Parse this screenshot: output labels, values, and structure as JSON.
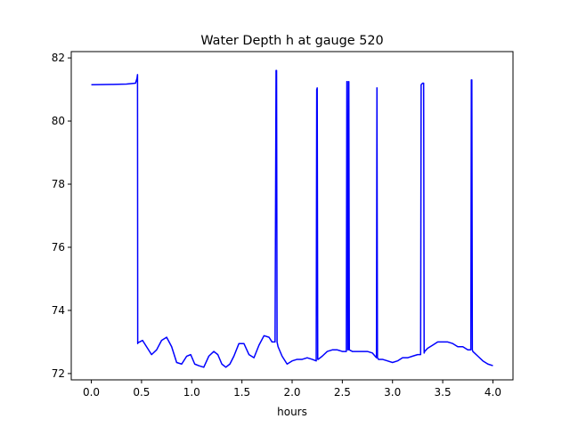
{
  "chart_data": {
    "type": "line",
    "title": "Water Depth h at gauge 520",
    "xlabel": "hours",
    "ylabel": "",
    "xlim": [
      -0.2,
      4.2
    ],
    "ylim": [
      71.8,
      82.2
    ],
    "x_ticks": [
      0.0,
      0.5,
      1.0,
      1.5,
      2.0,
      2.5,
      3.0,
      3.5,
      4.0
    ],
    "x_tick_labels": [
      "0.0",
      "0.5",
      "1.0",
      "1.5",
      "2.0",
      "2.5",
      "3.0",
      "3.5",
      "4.0"
    ],
    "y_ticks": [
      72,
      74,
      76,
      78,
      80,
      82
    ],
    "y_tick_labels": [
      "72",
      "74",
      "76",
      "78",
      "80",
      "82"
    ],
    "grid": false,
    "legend": "none",
    "series": [
      {
        "color": "#0000ff",
        "x": [
          0.0,
          0.2,
          0.35,
          0.44,
          0.455,
          0.46,
          0.462,
          0.465,
          0.48,
          0.51,
          0.55,
          0.6,
          0.65,
          0.7,
          0.75,
          0.8,
          0.85,
          0.9,
          0.95,
          0.99,
          1.03,
          1.07,
          1.12,
          1.17,
          1.22,
          1.26,
          1.3,
          1.34,
          1.38,
          1.42,
          1.47,
          1.52,
          1.57,
          1.62,
          1.67,
          1.72,
          1.77,
          1.8,
          1.83,
          1.84,
          1.845,
          1.85,
          1.86,
          1.9,
          1.95,
          2.0,
          2.05,
          2.1,
          2.15,
          2.2,
          2.24,
          2.245,
          2.25,
          2.255,
          2.26,
          2.3,
          2.35,
          2.4,
          2.45,
          2.5,
          2.54,
          2.545,
          2.55,
          2.555,
          2.56,
          2.565,
          2.57,
          2.6,
          2.65,
          2.7,
          2.75,
          2.8,
          2.84,
          2.845,
          2.85,
          2.86,
          2.9,
          2.95,
          3.0,
          3.05,
          3.1,
          3.15,
          3.2,
          3.25,
          3.28,
          3.285,
          3.3,
          3.31,
          3.315,
          3.32,
          3.35,
          3.4,
          3.45,
          3.5,
          3.55,
          3.6,
          3.65,
          3.7,
          3.75,
          3.78,
          3.785,
          3.79,
          3.795,
          3.8,
          3.85,
          3.9,
          3.95,
          4.0
        ],
        "y": [
          81.15,
          81.16,
          81.17,
          81.2,
          81.35,
          81.47,
          72.95,
          72.98,
          73.0,
          73.05,
          72.85,
          72.6,
          72.75,
          73.05,
          73.15,
          72.85,
          72.35,
          72.3,
          72.55,
          72.6,
          72.3,
          72.25,
          72.2,
          72.55,
          72.7,
          72.6,
          72.3,
          72.2,
          72.3,
          72.55,
          72.95,
          72.95,
          72.6,
          72.5,
          72.9,
          73.2,
          73.15,
          73.0,
          73.0,
          81.6,
          81.6,
          73.0,
          72.85,
          72.55,
          72.3,
          72.4,
          72.45,
          72.45,
          72.5,
          72.45,
          72.4,
          81.0,
          81.05,
          72.45,
          72.45,
          72.55,
          72.7,
          72.75,
          72.75,
          72.7,
          72.7,
          81.25,
          81.25,
          72.75,
          72.75,
          81.25,
          72.75,
          72.7,
          72.7,
          72.7,
          72.7,
          72.65,
          72.5,
          81.05,
          72.5,
          72.45,
          72.45,
          72.4,
          72.35,
          72.4,
          72.5,
          72.5,
          72.55,
          72.6,
          72.6,
          81.15,
          81.2,
          81.2,
          72.65,
          72.7,
          72.8,
          72.9,
          73.0,
          73.0,
          73.0,
          72.95,
          72.85,
          72.85,
          72.75,
          72.75,
          81.3,
          81.3,
          72.75,
          72.7,
          72.55,
          72.4,
          72.3,
          72.25
        ]
      }
    ]
  }
}
